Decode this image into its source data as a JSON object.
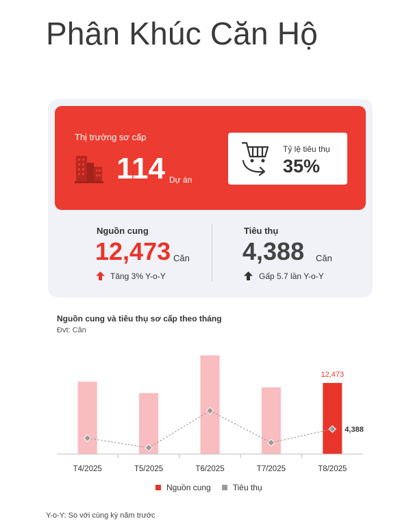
{
  "title": "Phân Khúc Căn Hộ",
  "summary": {
    "market_label": "Thị trường sơ cấp",
    "project_count": "114",
    "project_unit": "Dự án",
    "absorption_label": "Tỷ lệ tiêu thụ",
    "absorption_value": "35%",
    "supply": {
      "label": "Nguồn cung",
      "value": "12,473",
      "unit": "Căn",
      "change": "Tăng 3% Y-o-Y",
      "color": "#e8352b"
    },
    "sold": {
      "label": "Tiêu thụ",
      "value": "4,388",
      "unit": "Căn",
      "change": "Gấp 5.7 lần Y-o-Y",
      "color": "#444444"
    },
    "icons": [
      "building-icon",
      "cart-icon",
      "arrow-up-icon"
    ],
    "accent_color": "#ec3b30"
  },
  "chart_data": {
    "type": "bar",
    "title": "Nguồn cung và tiêu thụ sơ cấp theo tháng",
    "unit_label": "Đvt: Căn",
    "categories": [
      "T4/2025",
      "T5/2025",
      "T6/2025",
      "T7/2025",
      "T8/2025"
    ],
    "series": [
      {
        "name": "Nguồn cung",
        "type": "bar",
        "values": [
          12700,
          10700,
          17300,
          11700,
          12473
        ],
        "color": "#f9bcbf",
        "highlight_color": "#e8352b"
      },
      {
        "name": "Tiêu thụ",
        "type": "line",
        "values": [
          2800,
          1100,
          7600,
          2000,
          4388
        ],
        "color": "#9a9a9a"
      }
    ],
    "data_labels": {
      "bar_last": "12,473",
      "line_last": "4,388"
    },
    "ylim": [
      0,
      18000
    ],
    "grid": false,
    "legend_position": "bottom"
  },
  "footnote": "Y-o-Y: So với cùng kỳ năm trước"
}
